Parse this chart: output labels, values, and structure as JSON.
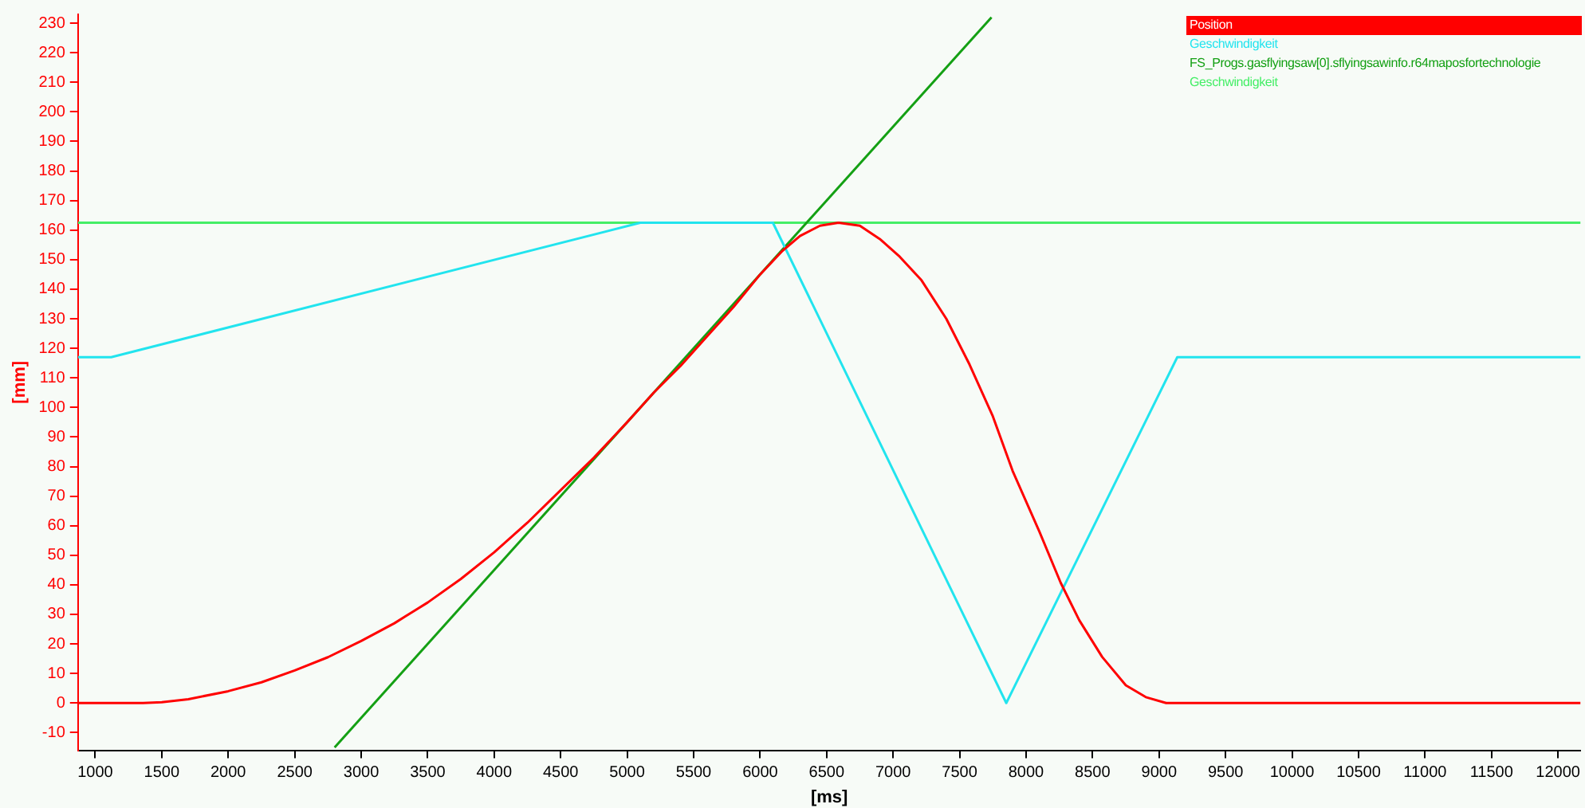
{
  "chart_data": {
    "type": "line",
    "xlabel": "[ms]",
    "ylabel": "[mm]",
    "legend": "top right",
    "grid": false,
    "marker": "none",
    "line_style": "solid",
    "xlim": [
      870,
      12170
    ],
    "ylim": [
      -16,
      233
    ],
    "xticks": [
      1000,
      1500,
      2000,
      2500,
      3000,
      3500,
      4000,
      4500,
      5000,
      5500,
      6000,
      6500,
      7000,
      7500,
      8000,
      8500,
      9000,
      9500,
      10000,
      10500,
      11000,
      11500,
      12000
    ],
    "yticks": [
      -10,
      0,
      10,
      20,
      30,
      40,
      50,
      60,
      70,
      80,
      90,
      100,
      110,
      120,
      130,
      140,
      150,
      160,
      170,
      180,
      190,
      200,
      210,
      220,
      230
    ],
    "series": [
      {
        "name": "Position",
        "color": "#ff0000",
        "x": [
          870,
          1360,
          1500,
          1700,
          2000,
          2250,
          2500,
          2750,
          3000,
          3250,
          3500,
          3750,
          4000,
          4250,
          4500,
          4750,
          5000,
          5200,
          5400,
          5600,
          5800,
          6000,
          6168,
          6300,
          6450,
          6589,
          6750,
          6900,
          7050,
          7214,
          7400,
          7575,
          7750,
          7899,
          8100,
          8260,
          8400,
          8572,
          8750,
          8900,
          9053,
          12170
        ],
        "values": [
          0,
          0,
          0.3,
          1.3,
          4,
          7,
          11,
          15.5,
          21,
          27,
          34,
          42,
          51,
          61,
          72,
          83,
          95,
          105,
          114,
          124,
          134,
          145,
          153,
          158,
          161.5,
          162.5,
          161.5,
          157,
          151,
          143,
          130,
          114.5,
          97,
          78.5,
          58,
          40.7,
          28,
          15.6,
          6,
          2,
          0,
          0
        ]
      },
      {
        "name": "Geschwindigkeit",
        "color": "#22e4ee",
        "x": [
          870,
          1120,
          5099,
          6096,
          7851,
          9137,
          12170
        ],
        "values": [
          117,
          117,
          162.5,
          162.5,
          0,
          117,
          117
        ]
      },
      {
        "name": "FS_Progs.gasflyingsaw[0].sflyingsawinfo.r64maposfortechnologie",
        "color": "#14a014",
        "x": [
          2800,
          7740
        ],
        "values": [
          -15,
          232
        ]
      },
      {
        "name": "Geschwindigkeit",
        "color": "#44ee66",
        "x": [
          870,
          12170
        ],
        "values": [
          162.5,
          162.5
        ]
      }
    ]
  }
}
